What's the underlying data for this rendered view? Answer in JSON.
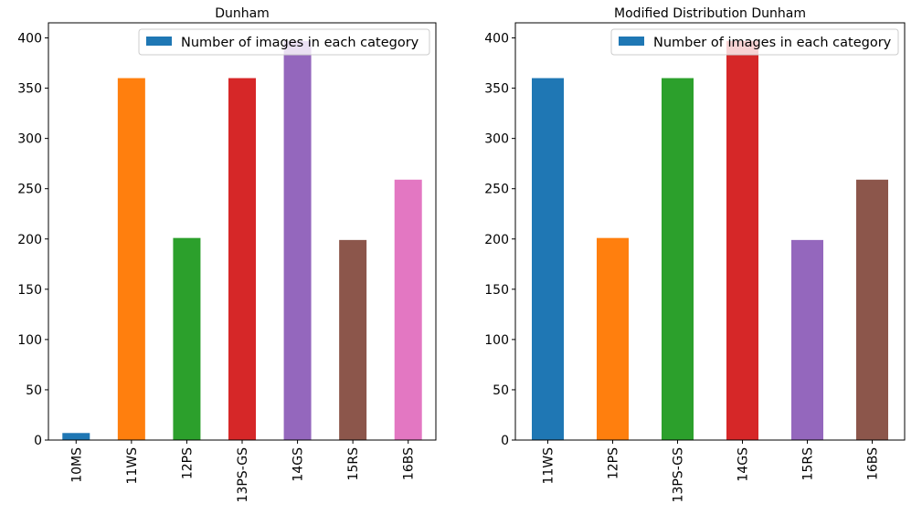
{
  "chart_data": [
    {
      "type": "bar",
      "title": "Dunham",
      "xlabel": "",
      "ylabel": "",
      "categories": [
        "10MS",
        "11WS",
        "12PS",
        "13PS-GS",
        "14GS",
        "15RS",
        "16BS"
      ],
      "values": [
        7,
        360,
        201,
        360,
        397,
        199,
        259
      ],
      "bar_colors": [
        "#1f77b4",
        "#ff7f0e",
        "#2ca02c",
        "#d62728",
        "#9467bd",
        "#8c564b",
        "#e377c2"
      ],
      "ylim": [
        0,
        415
      ],
      "yticks": [
        0,
        50,
        100,
        150,
        200,
        250,
        300,
        350,
        400
      ],
      "legend": {
        "label": "Number of images in each category",
        "color": "#1f77b4",
        "position": "top-right"
      },
      "grid": false
    },
    {
      "type": "bar",
      "title": "Modified Distribution Dunham",
      "xlabel": "",
      "ylabel": "",
      "categories": [
        "11WS",
        "12PS",
        "13PS-GS",
        "14GS",
        "15RS",
        "16BS"
      ],
      "values": [
        360,
        201,
        360,
        397,
        199,
        259
      ],
      "bar_colors": [
        "#1f77b4",
        "#ff7f0e",
        "#2ca02c",
        "#d62728",
        "#9467bd",
        "#8c564b"
      ],
      "ylim": [
        0,
        415
      ],
      "yticks": [
        0,
        50,
        100,
        150,
        200,
        250,
        300,
        350,
        400
      ],
      "legend": {
        "label": "Number of images in each category",
        "color": "#1f77b4",
        "position": "top-right"
      },
      "grid": false
    }
  ]
}
